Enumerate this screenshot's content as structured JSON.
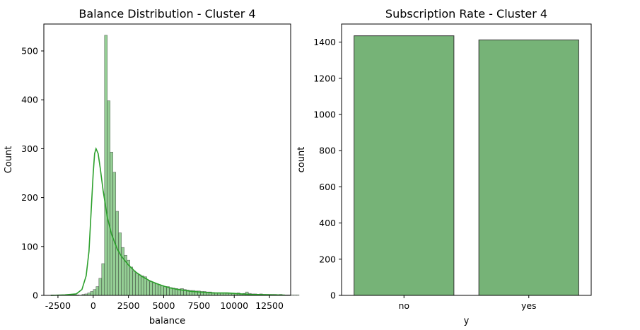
{
  "chart_data": [
    {
      "type": "histogram",
      "title": "Balance Distribution - Cluster 4",
      "xlabel": "balance",
      "ylabel": "Count",
      "xlim": [
        -3500,
        14000
      ],
      "ylim": [
        0,
        555
      ],
      "xticks": [
        -2500,
        0,
        2500,
        5000,
        7500,
        10000,
        12500
      ],
      "yticks": [
        0,
        100,
        200,
        300,
        400,
        500
      ],
      "bin_width": 200,
      "bins_start": -3000,
      "counts": [
        1,
        0,
        1,
        0,
        1,
        1,
        0,
        1,
        1,
        1,
        0,
        2,
        3,
        5,
        8,
        12,
        18,
        35,
        65,
        532,
        398,
        293,
        252,
        172,
        128,
        98,
        82,
        72,
        58,
        50,
        45,
        42,
        40,
        38,
        30,
        28,
        26,
        24,
        22,
        20,
        18,
        18,
        16,
        15,
        14,
        13,
        14,
        12,
        11,
        10,
        10,
        9,
        9,
        8,
        8,
        7,
        7,
        6,
        5,
        5,
        5,
        5,
        4,
        4,
        4,
        4,
        5,
        3,
        4,
        7,
        4,
        3,
        3,
        2,
        3,
        2,
        2,
        2,
        2,
        2,
        1,
        2,
        1,
        1,
        1,
        1,
        1,
        1
      ],
      "kde": [
        [
          -3000,
          0
        ],
        [
          -2000,
          1
        ],
        [
          -1200,
          3
        ],
        [
          -800,
          12
        ],
        [
          -500,
          40
        ],
        [
          -300,
          90
        ],
        [
          -150,
          170
        ],
        [
          0,
          250
        ],
        [
          100,
          290
        ],
        [
          200,
          300
        ],
        [
          350,
          290
        ],
        [
          500,
          260
        ],
        [
          700,
          215
        ],
        [
          1000,
          160
        ],
        [
          1300,
          125
        ],
        [
          1700,
          95
        ],
        [
          2000,
          80
        ],
        [
          2500,
          62
        ],
        [
          3000,
          48
        ],
        [
          3500,
          38
        ],
        [
          4000,
          30
        ],
        [
          4500,
          24
        ],
        [
          5000,
          19
        ],
        [
          5500,
          15
        ],
        [
          6000,
          12
        ],
        [
          6500,
          10
        ],
        [
          7000,
          8
        ],
        [
          7500,
          7
        ],
        [
          8000,
          6
        ],
        [
          8500,
          5
        ],
        [
          9000,
          5
        ],
        [
          9500,
          5
        ],
        [
          10000,
          4
        ],
        [
          10500,
          3
        ],
        [
          11000,
          2
        ],
        [
          12000,
          1.5
        ],
        [
          13000,
          1
        ],
        [
          13600,
          0.5
        ]
      ],
      "color": "#2ca02c"
    },
    {
      "type": "bar",
      "title": "Subscription Rate - Cluster 4",
      "xlabel": "y",
      "ylabel": "count",
      "categories": [
        "no",
        "yes"
      ],
      "values": [
        1435,
        1412
      ],
      "ylim": [
        0,
        1500
      ],
      "yticks": [
        0,
        200,
        400,
        600,
        800,
        1000,
        1200,
        1400
      ],
      "color": "#76b377"
    }
  ]
}
